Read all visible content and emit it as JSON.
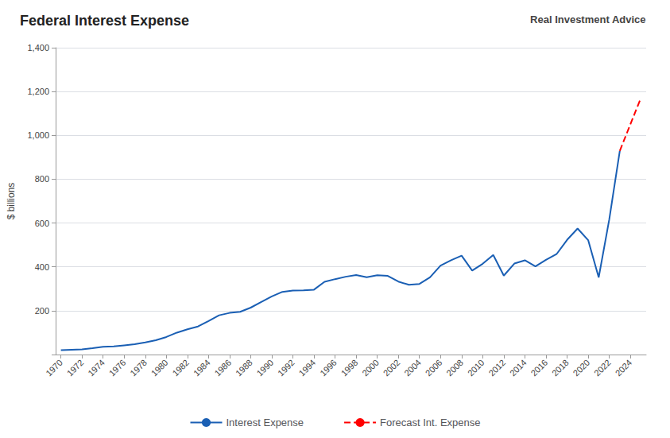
{
  "chart_data": {
    "type": "line",
    "title": "Federal Interest Expense",
    "annotation": "Real Investment Advice",
    "ylabel": "$ billions",
    "xlim": [
      1969.5,
      2025.5
    ],
    "xticks": [
      1970,
      1972,
      1974,
      1976,
      1978,
      1980,
      1982,
      1984,
      1986,
      1988,
      1990,
      1992,
      1994,
      1996,
      1998,
      2000,
      2002,
      2004,
      2006,
      2008,
      2010,
      2012,
      2014,
      2016,
      2018,
      2020,
      2022,
      2024
    ],
    "ylim": [
      0,
      1400
    ],
    "yticks": [
      {
        "value": 0,
        "label": ""
      },
      200,
      400,
      600,
      800,
      {
        "value": 1000,
        "label": "1,000"
      },
      {
        "value": 1200,
        "label": "1,200"
      },
      {
        "value": 1400,
        "label": "1,400"
      }
    ],
    "grid": true,
    "legend": "bottom",
    "series": [
      {
        "name": "Interest Expense",
        "color": "#1a5fb4",
        "line_style": "solid",
        "x": [
          1970,
          1971,
          1972,
          1973,
          1974,
          1975,
          1976,
          1977,
          1978,
          1979,
          1980,
          1981,
          1982,
          1983,
          1984,
          1985,
          1986,
          1987,
          1988,
          1989,
          1990,
          1991,
          1992,
          1993,
          1994,
          1995,
          1996,
          1997,
          1998,
          1999,
          2000,
          2001,
          2002,
          2003,
          2004,
          2005,
          2006,
          2007,
          2008,
          2009,
          2010,
          2011,
          2012,
          2013,
          2014,
          2015,
          2016,
          2017,
          2018,
          2019,
          2020,
          2021,
          2022,
          2023
        ],
        "values": [
          20,
          22,
          24,
          29,
          35,
          37,
          42,
          47,
          55,
          65,
          80,
          100,
          115,
          128,
          153,
          179,
          190,
          195,
          214,
          240,
          265,
          286,
          292,
          293,
          296,
          332,
          344,
          355,
          363,
          353,
          362,
          359,
          333,
          318,
          322,
          352,
          406,
          430,
          451,
          383,
          414,
          454,
          360,
          415,
          430,
          402,
          432,
          458,
          523,
          575,
          522,
          352,
          616,
          929
        ]
      },
      {
        "name": "Forecast Int. Expense",
        "color": "#ff0000",
        "line_style": "dashed",
        "x": [
          2023,
          2023.5,
          2024,
          2024.5,
          2025
        ],
        "values": [
          929,
          990,
          1050,
          1110,
          1170
        ]
      }
    ]
  }
}
